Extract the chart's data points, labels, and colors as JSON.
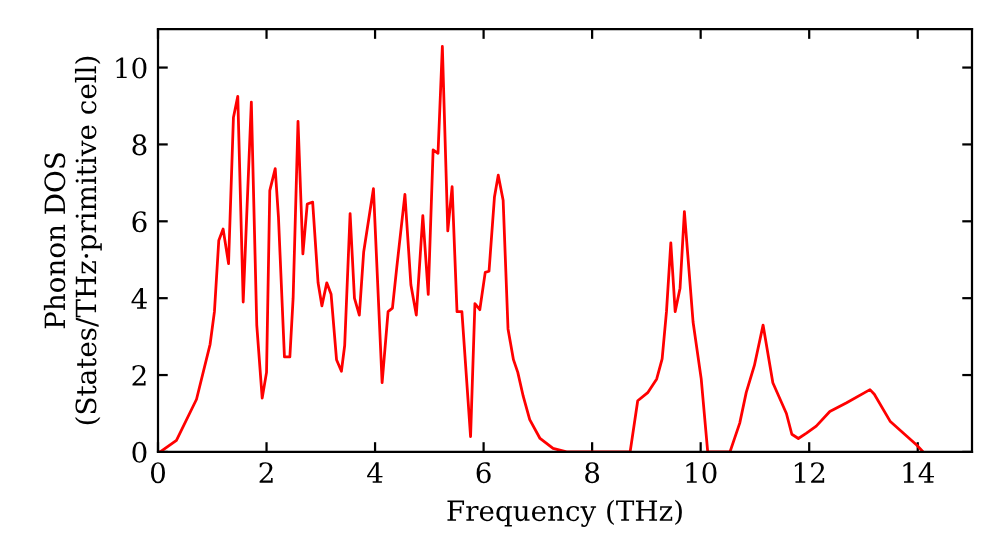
{
  "chart_data": {
    "type": "line",
    "xlabel": "Frequency (THz)",
    "ylabel": "Phonon DOS\n(States/THz·primitive cell)",
    "x": [
      0,
      0.04,
      0.34,
      0.71,
      0.96,
      1.04,
      1.12,
      1.2,
      1.3,
      1.39,
      1.47,
      1.57,
      1.72,
      1.82,
      1.92,
      2.0,
      2.06,
      2.16,
      2.22,
      2.33,
      2.43,
      2.49,
      2.58,
      2.67,
      2.75,
      2.85,
      2.95,
      3.02,
      3.11,
      3.19,
      3.29,
      3.38,
      3.44,
      3.54,
      3.62,
      3.71,
      3.79,
      3.97,
      4.13,
      4.24,
      4.32,
      4.4,
      4.55,
      4.66,
      4.76,
      4.88,
      4.98,
      5.07,
      5.16,
      5.24,
      5.34,
      5.42,
      5.51,
      5.6,
      5.76,
      5.84,
      5.93,
      6.03,
      6.1,
      6.2,
      6.27,
      6.36,
      6.45,
      6.55,
      6.63,
      6.73,
      6.85,
      7.04,
      7.28,
      7.53,
      8.7,
      8.84,
      9.03,
      9.19,
      9.29,
      9.37,
      9.45,
      9.53,
      9.62,
      9.7,
      9.86,
      10.01,
      10.13,
      10.54,
      10.72,
      10.84,
      10.99,
      11.15,
      11.33,
      11.58,
      11.68,
      11.8,
      11.95,
      12.13,
      12.38,
      12.69,
      13.12,
      13.2,
      13.49,
      13.98,
      14.1
    ],
    "series": [
      {
        "color": "#ff0000",
        "values": [
          0,
          0,
          0.3,
          1.37,
          2.8,
          3.65,
          5.5,
          5.8,
          4.9,
          8.7,
          9.25,
          3.9,
          9.1,
          3.3,
          1.4,
          2.07,
          6.8,
          7.37,
          6.1,
          2.47,
          2.47,
          4.0,
          8.6,
          5.15,
          6.45,
          6.5,
          4.4,
          3.8,
          4.4,
          4.1,
          2.4,
          2.1,
          2.77,
          6.2,
          4.0,
          3.56,
          5.2,
          6.85,
          1.8,
          3.65,
          3.74,
          4.8,
          6.7,
          4.35,
          3.56,
          6.15,
          4.1,
          7.86,
          7.77,
          10.55,
          5.75,
          6.9,
          3.65,
          3.65,
          0.4,
          3.86,
          3.7,
          4.67,
          4.7,
          6.63,
          7.2,
          6.55,
          3.2,
          2.4,
          2.07,
          1.45,
          0.84,
          0.35,
          0.09,
          0,
          0,
          1.33,
          1.55,
          1.9,
          2.42,
          3.65,
          5.44,
          3.65,
          4.26,
          6.25,
          3.38,
          1.9,
          0,
          0,
          0.75,
          1.55,
          2.25,
          3.3,
          1.8,
          1.0,
          0.46,
          0.35,
          0.49,
          0.67,
          1.05,
          1.28,
          1.62,
          1.5,
          0.8,
          0.18,
          0
        ]
      }
    ],
    "xlim": [
      0,
      15
    ],
    "ylim": [
      0,
      11
    ],
    "xticks": [
      0,
      2,
      4,
      6,
      8,
      10,
      12,
      14
    ],
    "yticks": [
      0,
      2,
      4,
      6,
      8,
      10
    ],
    "grid": false,
    "marker": "none",
    "line_style": "solid"
  }
}
